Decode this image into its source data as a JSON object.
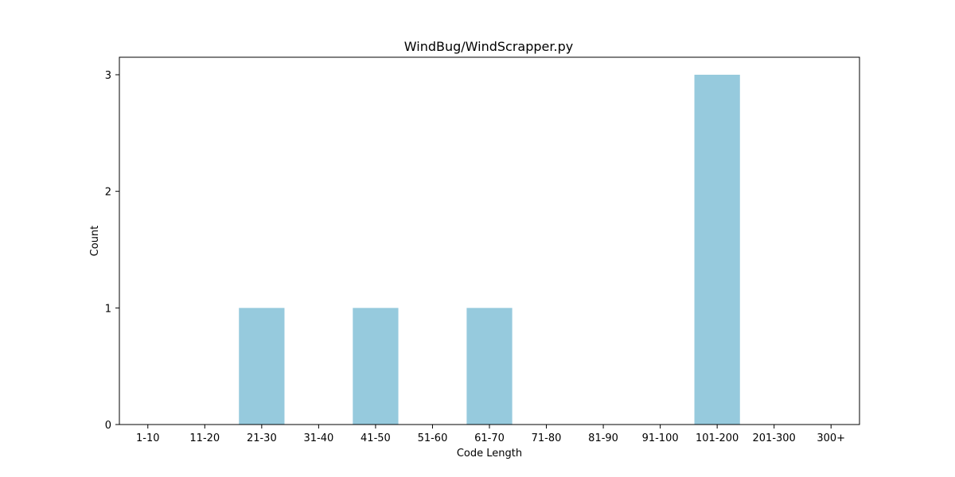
{
  "chart_data": {
    "type": "bar",
    "title": "WindBug/WindScrapper.py",
    "xlabel": "Code Length",
    "ylabel": "Count",
    "categories": [
      "1-10",
      "11-20",
      "21-30",
      "31-40",
      "41-50",
      "51-60",
      "61-70",
      "71-80",
      "81-90",
      "91-100",
      "101-200",
      "201-300",
      "300+"
    ],
    "values": [
      0,
      0,
      1,
      0,
      1,
      0,
      1,
      0,
      0,
      0,
      3,
      0,
      0
    ],
    "ylim": [
      0,
      3.15
    ],
    "yticks": [
      0,
      1,
      2,
      3
    ],
    "bar_color": "#96cadd",
    "grid": false,
    "legend": "none"
  }
}
